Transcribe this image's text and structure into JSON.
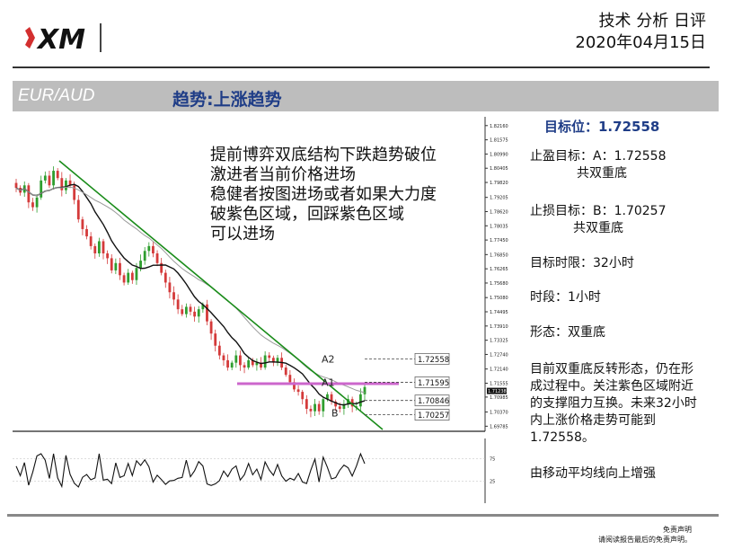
{
  "brand": {
    "logo_text": "XM"
  },
  "header": {
    "line1": "技术 分析 日评",
    "line2": "2020年04月15日"
  },
  "title_bar": {
    "pair": "EUR/AUD",
    "trend": "趋势:上涨趋势"
  },
  "commentary": [
    "提前博弈双底结构下跌趋势破位",
    "激进者当前价格进场",
    "稳健者按图进场或者如果大力度",
    "破紫色区域，回踩紫色区域",
    "可以进场"
  ],
  "side": {
    "target_label": "目标位：1.72558",
    "tp_line1": "止盈目标：A：1.72558",
    "tp_line2": "共双重底",
    "sl_line1": "止损目标：B：1.70257",
    "sl_line2": "共双重底",
    "time_limit": "目标时限：32小时",
    "timeframe": "时段：1小时",
    "pattern": "形态：双重底",
    "analysis": [
      "目前双重底反转形态，仍在形",
      "成过程中。关注紫色区域附近",
      "的支撑阻力互换。未来32小时",
      "内上涨价格走势可能到",
      "1.72558。"
    ],
    "ma_note": "由移动平均线向上增强"
  },
  "disclaimer": {
    "line1": "免责声明",
    "line2": "请阅读报告最后的免责声明。"
  },
  "chart_data": {
    "type": "candlestick",
    "symbol": "EUR/AUD",
    "timeframe": "1H",
    "yticks": [
      "1.82160",
      "1.81575",
      "1.80990",
      "1.80405",
      "1.79820",
      "1.79205",
      "1.78620",
      "1.78035",
      "1.77450",
      "1.76850",
      "1.76265",
      "1.75680",
      "1.75080",
      "1.74495",
      "1.73910",
      "1.73325",
      "1.72740",
      "1.72140",
      "1.71555",
      "1.70985",
      "1.70370",
      "1.69785"
    ],
    "ylim": [
      1.6965,
      1.823
    ],
    "current_price": "1.71238",
    "close_approx": [
      1.796,
      1.794,
      1.797,
      1.79,
      1.788,
      1.792,
      1.799,
      1.801,
      1.797,
      1.803,
      1.8,
      1.795,
      1.799,
      1.797,
      1.791,
      1.783,
      1.779,
      1.776,
      1.772,
      1.769,
      1.774,
      1.769,
      1.767,
      1.762,
      1.765,
      1.76,
      1.757,
      1.761,
      1.758,
      1.763,
      1.766,
      1.77,
      1.772,
      1.769,
      1.765,
      1.761,
      1.757,
      1.753,
      1.75,
      1.746,
      1.744,
      1.747,
      1.745,
      1.743,
      1.746,
      1.748,
      1.741,
      1.736,
      1.731,
      1.727,
      1.725,
      1.722,
      1.724,
      1.727,
      1.723,
      1.722,
      1.725,
      1.723,
      1.724,
      1.722,
      1.727,
      1.726,
      1.724,
      1.726,
      1.722,
      1.719,
      1.716,
      1.713,
      1.712,
      1.709,
      1.705,
      1.704,
      1.707,
      1.704,
      1.709,
      1.711,
      1.708,
      1.706,
      1.705,
      1.707,
      1.709,
      1.706,
      1.706,
      1.711,
      1.714
    ],
    "levels": [
      {
        "name": "A2",
        "value": 1.72558,
        "label": "1.72558"
      },
      {
        "name": "A1",
        "value": 1.71595,
        "label": "1.71595"
      },
      {
        "name": "",
        "value": 1.70846,
        "label": "1.70846"
      },
      {
        "name": "B",
        "value": 1.70257,
        "label": "1.70257"
      }
    ],
    "oscillator": {
      "ylim": [
        0,
        100
      ],
      "ticks": [
        "75",
        "25"
      ]
    }
  }
}
